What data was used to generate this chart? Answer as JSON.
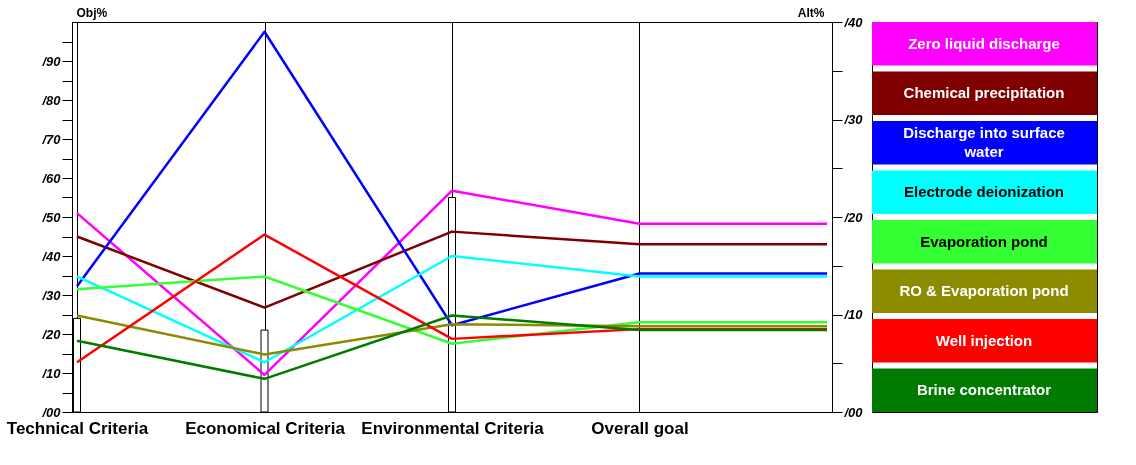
{
  "chart_data": {
    "type": "line",
    "ylabel": "Obj%",
    "y2label": "Alt%",
    "categories": [
      "Technical Criteria",
      "Economical Criteria",
      "Environmental Criteria",
      "Overall goal",
      null
    ],
    "series": [
      {
        "type": "bar",
        "axis": "y",
        "color": "#ffffff",
        "values": [
          24,
          21,
          55,
          null,
          null
        ]
      },
      {
        "name": "Zero liquid discharge",
        "color": "#ff00ff",
        "axis": "y2",
        "values": [
          20.4,
          3.8,
          22.7,
          19.3,
          19.3
        ]
      },
      {
        "name": "Chemical precipitation",
        "color": "#800000",
        "axis": "y2",
        "values": [
          18.0,
          10.7,
          18.5,
          17.2,
          17.2
        ]
      },
      {
        "name": "Discharge into surface water",
        "color": "#0000ff",
        "axis": "y2",
        "values": [
          12.9,
          39.0,
          8.9,
          14.2,
          14.2
        ]
      },
      {
        "name": "Electrode deionization",
        "color": "#00ffff",
        "axis": "y2",
        "values": [
          13.9,
          5.1,
          16.0,
          13.9,
          13.9
        ]
      },
      {
        "name": "Evaporation pond",
        "color": "#33ff33",
        "axis": "y2",
        "values": [
          12.6,
          13.9,
          7.0,
          9.2,
          9.2
        ]
      },
      {
        "name": "RO & Evaporation pond",
        "color": "#8b8b00",
        "axis": "y2",
        "values": [
          9.9,
          5.9,
          9.0,
          8.8,
          8.8
        ]
      },
      {
        "name": "Well injection",
        "color": "#ff0000",
        "axis": "y2",
        "values": [
          5.1,
          18.2,
          7.5,
          8.5,
          8.5
        ]
      },
      {
        "name": "Brine concentrator",
        "color": "#007a00",
        "axis": "y2",
        "values": [
          7.3,
          3.4,
          9.9,
          8.4,
          8.4
        ]
      }
    ],
    "ylim": [
      0,
      100
    ],
    "yticks": [
      {
        "value": 0,
        "label": "/00"
      },
      {
        "value": 5,
        "label": null
      },
      {
        "value": 10,
        "label": "/10"
      },
      {
        "value": 15,
        "label": null
      },
      {
        "value": 20,
        "label": "/20"
      },
      {
        "value": 25,
        "label": null
      },
      {
        "value": 30,
        "label": "/30"
      },
      {
        "value": 35,
        "label": null
      },
      {
        "value": 40,
        "label": "/40"
      },
      {
        "value": 45,
        "label": null
      },
      {
        "value": 50,
        "label": "/50"
      },
      {
        "value": 55,
        "label": null
      },
      {
        "value": 60,
        "label": "/60"
      },
      {
        "value": 65,
        "label": null
      },
      {
        "value": 70,
        "label": "/70"
      },
      {
        "value": 75,
        "label": null
      },
      {
        "value": 80,
        "label": "/80"
      },
      {
        "value": 85,
        "label": null
      },
      {
        "value": 90,
        "label": "/90"
      },
      {
        "value": 95,
        "label": null
      }
    ],
    "y2lim": [
      0,
      40
    ],
    "y2ticks": [
      {
        "value": 0,
        "label": "/00"
      },
      {
        "value": 5,
        "label": null
      },
      {
        "value": 10,
        "label": "/10"
      },
      {
        "value": 15,
        "label": null
      },
      {
        "value": 20,
        "label": "/20"
      },
      {
        "value": 25,
        "label": null
      },
      {
        "value": 30,
        "label": "/30"
      },
      {
        "value": 35,
        "label": null
      },
      {
        "value": 40,
        "label": "/40"
      }
    ],
    "grid": "x",
    "legend": "right"
  }
}
